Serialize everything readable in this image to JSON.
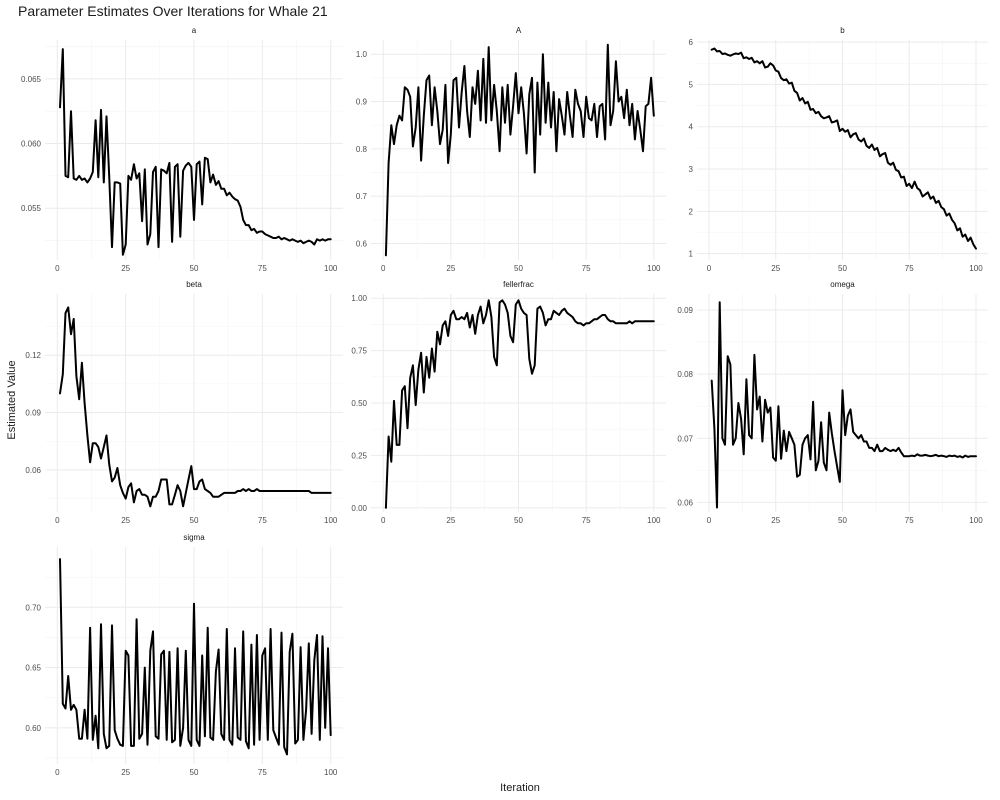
{
  "chart_data": {
    "type": "line",
    "title": "Parameter Estimates Over Iterations for Whale 21",
    "xlabel": "Iteration",
    "ylabel": "Estimated Value",
    "grid": true,
    "legend": "none",
    "line_color": "#000000",
    "x": [
      1,
      2,
      3,
      4,
      5,
      6,
      7,
      8,
      9,
      10,
      11,
      12,
      13,
      14,
      15,
      16,
      17,
      18,
      19,
      20,
      21,
      22,
      23,
      24,
      25,
      26,
      27,
      28,
      29,
      30,
      31,
      32,
      33,
      34,
      35,
      36,
      37,
      38,
      39,
      40,
      41,
      42,
      43,
      44,
      45,
      46,
      47,
      48,
      49,
      50,
      51,
      52,
      53,
      54,
      55,
      56,
      57,
      58,
      59,
      60,
      61,
      62,
      63,
      64,
      65,
      66,
      67,
      68,
      69,
      70,
      71,
      72,
      73,
      74,
      75,
      76,
      77,
      78,
      79,
      80,
      81,
      82,
      83,
      84,
      85,
      86,
      87,
      88,
      89,
      90,
      91,
      92,
      93,
      94,
      95,
      96,
      97,
      98,
      99,
      100
    ],
    "panels": [
      {
        "name": "a",
        "ylim": [
          0.051,
          0.068
        ],
        "yticks": [
          0.055,
          0.06,
          0.065
        ],
        "yticklabels": [
          "0.055",
          "0.060",
          "0.065"
        ],
        "xticks": [
          0,
          25,
          50,
          75,
          100
        ],
        "values": [
          0.0628,
          0.0673,
          0.0575,
          0.0574,
          0.0625,
          0.0573,
          0.0572,
          0.0575,
          0.0572,
          0.0573,
          0.057,
          0.0573,
          0.0578,
          0.0618,
          0.0574,
          0.0626,
          0.057,
          0.0621,
          0.0575,
          0.052,
          0.057,
          0.057,
          0.0569,
          0.0514,
          0.0522,
          0.0575,
          0.0572,
          0.0584,
          0.0573,
          0.0577,
          0.054,
          0.058,
          0.0522,
          0.053,
          0.0578,
          0.0582,
          0.052,
          0.058,
          0.0579,
          0.0577,
          0.0585,
          0.0524,
          0.0582,
          0.0584,
          0.0528,
          0.0579,
          0.0583,
          0.0585,
          0.0582,
          0.0541,
          0.0584,
          0.0586,
          0.0553,
          0.0589,
          0.0588,
          0.057,
          0.0576,
          0.0568,
          0.0571,
          0.0565,
          0.0565,
          0.056,
          0.0562,
          0.0559,
          0.0557,
          0.0556,
          0.0551,
          0.0541,
          0.0537,
          0.0537,
          0.0533,
          0.0534,
          0.0531,
          0.0532,
          0.0532,
          0.053,
          0.0529,
          0.0528,
          0.0527,
          0.0527,
          0.0528,
          0.0526,
          0.0527,
          0.0526,
          0.0525,
          0.0526,
          0.0525,
          0.0524,
          0.0525,
          0.0523,
          0.0524,
          0.0525,
          0.0524,
          0.0522,
          0.0526,
          0.0525,
          0.0526,
          0.0525,
          0.0526,
          0.0526
        ]
      },
      {
        "name": "A",
        "ylim": [
          0.565,
          1.03
        ],
        "yticks": [
          0.6,
          0.7,
          0.8,
          0.9,
          1.0
        ],
        "yticklabels": [
          "0.6",
          "0.7",
          "0.8",
          "0.9",
          "1.0"
        ],
        "xticks": [
          0,
          25,
          50,
          75,
          100
        ],
        "values": [
          0.575,
          0.77,
          0.85,
          0.81,
          0.85,
          0.87,
          0.86,
          0.93,
          0.925,
          0.91,
          0.805,
          0.845,
          0.93,
          0.775,
          0.87,
          0.945,
          0.955,
          0.85,
          0.93,
          0.88,
          0.81,
          0.84,
          0.935,
          0.77,
          0.83,
          0.945,
          0.95,
          0.845,
          0.92,
          0.975,
          0.88,
          0.825,
          0.93,
          0.895,
          0.965,
          0.86,
          0.99,
          0.855,
          1.015,
          0.86,
          0.935,
          0.88,
          0.795,
          0.93,
          0.855,
          0.935,
          0.83,
          0.89,
          0.96,
          0.875,
          0.93,
          0.875,
          0.79,
          0.915,
          0.95,
          0.75,
          0.94,
          0.83,
          1.0,
          0.855,
          0.94,
          0.845,
          0.92,
          0.795,
          0.905,
          0.87,
          0.83,
          0.92,
          0.87,
          0.825,
          0.925,
          0.895,
          0.88,
          0.825,
          0.91,
          0.865,
          0.86,
          0.895,
          0.825,
          0.89,
          0.895,
          0.82,
          1.02,
          0.85,
          0.88,
          0.985,
          0.9,
          0.91,
          0.865,
          0.925,
          0.85,
          0.895,
          0.82,
          0.88,
          0.84,
          0.795,
          0.89,
          0.895,
          0.95,
          0.87
        ]
      },
      {
        "name": "b",
        "ylim": [
          0.85,
          6.05
        ],
        "yticks": [
          1,
          2,
          3,
          4,
          5,
          6
        ],
        "yticklabels": [
          "1",
          "2",
          "3",
          "4",
          "5",
          "6"
        ],
        "xticks": [
          0,
          25,
          50,
          75,
          100
        ],
        "values": [
          5.82,
          5.85,
          5.78,
          5.79,
          5.72,
          5.73,
          5.7,
          5.68,
          5.71,
          5.73,
          5.72,
          5.75,
          5.62,
          5.64,
          5.6,
          5.63,
          5.52,
          5.55,
          5.5,
          5.55,
          5.4,
          5.42,
          5.5,
          5.45,
          5.33,
          5.3,
          5.15,
          5.1,
          5.12,
          5.02,
          5.04,
          4.85,
          4.8,
          4.62,
          4.68,
          4.55,
          4.59,
          4.4,
          4.42,
          4.32,
          4.35,
          4.25,
          4.2,
          4.22,
          4.25,
          4.1,
          4.12,
          4.15,
          3.9,
          3.95,
          3.88,
          3.92,
          3.75,
          3.82,
          3.85,
          3.7,
          3.65,
          3.72,
          3.55,
          3.5,
          3.58,
          3.45,
          3.5,
          3.3,
          3.35,
          3.38,
          3.15,
          3.1,
          3.15,
          2.98,
          2.95,
          2.8,
          2.82,
          2.6,
          2.65,
          2.55,
          2.7,
          2.55,
          2.5,
          2.35,
          2.4,
          2.45,
          2.3,
          2.35,
          2.2,
          2.25,
          2.1,
          2.05,
          1.9,
          1.95,
          1.8,
          1.72,
          1.55,
          1.6,
          1.4,
          1.45,
          1.3,
          1.38,
          1.22,
          1.12
        ]
      },
      {
        "name": "beta",
        "ylim": [
          0.038,
          0.152
        ],
        "yticks": [
          0.06,
          0.09,
          0.12
        ],
        "yticklabels": [
          "0.06",
          "0.09",
          "0.12"
        ],
        "xticks": [
          0,
          25,
          50,
          75,
          100
        ],
        "values": [
          0.1,
          0.11,
          0.142,
          0.145,
          0.131,
          0.139,
          0.109,
          0.097,
          0.116,
          0.095,
          0.078,
          0.064,
          0.074,
          0.074,
          0.072,
          0.066,
          0.072,
          0.078,
          0.063,
          0.054,
          0.056,
          0.061,
          0.052,
          0.048,
          0.045,
          0.051,
          0.053,
          0.043,
          0.049,
          0.05,
          0.047,
          0.047,
          0.046,
          0.041,
          0.046,
          0.046,
          0.049,
          0.055,
          0.055,
          0.055,
          0.042,
          0.042,
          0.047,
          0.052,
          0.049,
          0.041,
          0.048,
          0.055,
          0.062,
          0.05,
          0.05,
          0.054,
          0.055,
          0.05,
          0.049,
          0.048,
          0.046,
          0.046,
          0.046,
          0.047,
          0.048,
          0.048,
          0.048,
          0.048,
          0.048,
          0.049,
          0.049,
          0.05,
          0.049,
          0.05,
          0.049,
          0.049,
          0.05,
          0.049,
          0.049,
          0.049,
          0.049,
          0.049,
          0.049,
          0.049,
          0.049,
          0.049,
          0.049,
          0.049,
          0.049,
          0.049,
          0.049,
          0.049,
          0.049,
          0.049,
          0.049,
          0.049,
          0.048,
          0.048,
          0.048,
          0.048,
          0.048,
          0.048,
          0.048,
          0.048
        ]
      },
      {
        "name": "fellerfrac",
        "ylim": [
          -0.02,
          1.02
        ],
        "yticks": [
          0,
          0.25,
          0.5,
          0.75,
          1
        ],
        "yticklabels": [
          "0.00",
          "0.25",
          "0.50",
          "0.75",
          "1.00"
        ],
        "xticks": [
          0,
          25,
          50,
          75,
          100
        ],
        "values": [
          0.0,
          0.34,
          0.22,
          0.51,
          0.3,
          0.3,
          0.56,
          0.58,
          0.38,
          0.62,
          0.68,
          0.49,
          0.66,
          0.74,
          0.55,
          0.72,
          0.62,
          0.76,
          0.65,
          0.84,
          0.78,
          0.87,
          0.89,
          0.82,
          0.92,
          0.94,
          0.9,
          0.9,
          0.91,
          0.9,
          0.93,
          0.86,
          0.92,
          0.83,
          0.92,
          0.96,
          0.88,
          0.92,
          0.99,
          0.91,
          0.72,
          0.68,
          0.98,
          0.99,
          0.97,
          0.93,
          0.82,
          0.79,
          0.97,
          0.99,
          0.95,
          0.93,
          0.92,
          0.71,
          0.64,
          0.68,
          0.95,
          0.96,
          0.93,
          0.87,
          0.9,
          0.9,
          0.94,
          0.93,
          0.92,
          0.94,
          0.95,
          0.93,
          0.92,
          0.91,
          0.89,
          0.88,
          0.88,
          0.87,
          0.88,
          0.88,
          0.89,
          0.9,
          0.9,
          0.91,
          0.92,
          0.92,
          0.9,
          0.89,
          0.89,
          0.88,
          0.88,
          0.88,
          0.88,
          0.88,
          0.89,
          0.88,
          0.89,
          0.89,
          0.89,
          0.89,
          0.89,
          0.89,
          0.89,
          0.89
        ]
      },
      {
        "name": "omega",
        "ylim": [
          0.0585,
          0.0925
        ],
        "yticks": [
          0.06,
          0.07,
          0.08,
          0.09
        ],
        "yticklabels": [
          "0.06",
          "0.07",
          "0.08",
          "0.09"
        ],
        "xticks": [
          0,
          25,
          50,
          75,
          100
        ],
        "values": [
          0.079,
          0.0715,
          0.0592,
          0.0912,
          0.07,
          0.069,
          0.0828,
          0.0815,
          0.069,
          0.07,
          0.0755,
          0.073,
          0.0675,
          0.0792,
          0.0705,
          0.07,
          0.083,
          0.0745,
          0.0765,
          0.0695,
          0.076,
          0.074,
          0.0748,
          0.067,
          0.0665,
          0.075,
          0.0668,
          0.0712,
          0.068,
          0.071,
          0.07,
          0.069,
          0.064,
          0.0643,
          0.069,
          0.07,
          0.0705,
          0.0667,
          0.0757,
          0.065,
          0.0665,
          0.0725,
          0.0662,
          0.065,
          0.074,
          0.0708,
          0.068,
          0.0655,
          0.0632,
          0.0775,
          0.0705,
          0.0735,
          0.0745,
          0.071,
          0.0705,
          0.07,
          0.0705,
          0.0695,
          0.0695,
          0.0685,
          0.0685,
          0.068,
          0.069,
          0.068,
          0.068,
          0.0685,
          0.0682,
          0.068,
          0.0682,
          0.068,
          0.0685,
          0.0678,
          0.0672,
          0.0672,
          0.0672,
          0.0673,
          0.0672,
          0.0675,
          0.0673,
          0.0673,
          0.0674,
          0.0673,
          0.0672,
          0.0673,
          0.0674,
          0.0672,
          0.0673,
          0.0672,
          0.0671,
          0.0673,
          0.0672,
          0.0673,
          0.0671,
          0.0672,
          0.067,
          0.0673,
          0.0671,
          0.0672,
          0.0672,
          0.0672
        ]
      },
      {
        "name": "sigma",
        "ylim": [
          0.57,
          0.75
        ],
        "yticks": [
          0.6,
          0.65,
          0.7
        ],
        "yticklabels": [
          "0.60",
          "0.65",
          "0.70"
        ],
        "xticks": [
          0,
          25,
          50,
          75,
          100
        ],
        "values": [
          0.74,
          0.62,
          0.616,
          0.643,
          0.615,
          0.619,
          0.615,
          0.591,
          0.591,
          0.615,
          0.591,
          0.683,
          0.59,
          0.61,
          0.583,
          0.686,
          0.595,
          0.583,
          0.585,
          0.685,
          0.598,
          0.591,
          0.586,
          0.585,
          0.664,
          0.66,
          0.585,
          0.585,
          0.69,
          0.591,
          0.595,
          0.65,
          0.586,
          0.664,
          0.68,
          0.593,
          0.591,
          0.661,
          0.664,
          0.59,
          0.663,
          0.588,
          0.59,
          0.666,
          0.585,
          0.6,
          0.664,
          0.59,
          0.585,
          0.703,
          0.59,
          0.585,
          0.66,
          0.593,
          0.683,
          0.592,
          0.59,
          0.647,
          0.665,
          0.595,
          0.59,
          0.682,
          0.59,
          0.586,
          0.666,
          0.592,
          0.59,
          0.68,
          0.589,
          0.583,
          0.669,
          0.586,
          0.677,
          0.59,
          0.66,
          0.666,
          0.59,
          0.682,
          0.598,
          0.592,
          0.586,
          0.679,
          0.584,
          0.578,
          0.663,
          0.678,
          0.587,
          0.59,
          0.667,
          0.59,
          0.615,
          0.67,
          0.595,
          0.656,
          0.677,
          0.59,
          0.676,
          0.6,
          0.666,
          0.594
        ]
      }
    ]
  }
}
